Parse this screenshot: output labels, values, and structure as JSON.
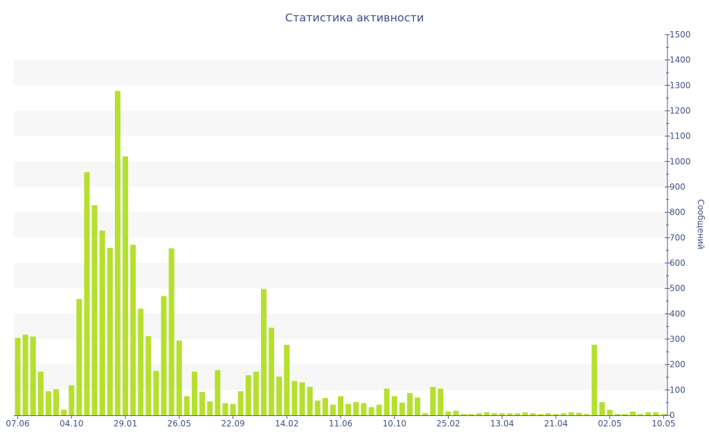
{
  "chart_data": {
    "type": "bar",
    "title": "Статистика активности",
    "ylabel": "Сообщений",
    "xlabel": "",
    "ylim": [
      0,
      1500
    ],
    "y_ticks": [
      0,
      100,
      200,
      300,
      400,
      500,
      600,
      700,
      800,
      900,
      1000,
      1100,
      1200,
      1300,
      1400,
      1500
    ],
    "y_axis_side": "right",
    "grid": "alternating horizontal bands",
    "bar_color": "#b5e02e",
    "band_color": "#f7f7f7",
    "text_color": "#3d4f86",
    "axis_color": "#4a5a8a",
    "x_tick_labels": [
      {
        "index": 0,
        "label": "07.06"
      },
      {
        "index": 7,
        "label": "04.10"
      },
      {
        "index": 14,
        "label": "29.01"
      },
      {
        "index": 21,
        "label": "26.05"
      },
      {
        "index": 28,
        "label": "22.09"
      },
      {
        "index": 35,
        "label": "14.02"
      },
      {
        "index": 42,
        "label": "11.06"
      },
      {
        "index": 49,
        "label": "10.10"
      },
      {
        "index": 56,
        "label": "25.02"
      },
      {
        "index": 63,
        "label": "13.04"
      },
      {
        "index": 70,
        "label": "21.04"
      },
      {
        "index": 77,
        "label": "02.05"
      },
      {
        "index": 84,
        "label": "10.05"
      }
    ],
    "values": [
      305,
      318,
      310,
      172,
      95,
      103,
      22,
      118,
      458,
      958,
      828,
      728,
      660,
      1278,
      1020,
      672,
      420,
      312,
      175,
      470,
      658,
      295,
      75,
      172,
      92,
      55,
      178,
      48,
      45,
      95,
      158,
      172,
      498,
      345,
      152,
      278,
      135,
      130,
      112,
      58,
      68,
      42,
      75,
      45,
      52,
      48,
      32,
      42,
      105,
      75,
      50,
      88,
      70,
      8,
      112,
      105,
      15,
      18,
      5,
      5,
      8,
      12,
      8,
      8,
      8,
      8,
      12,
      8,
      5,
      8,
      5,
      8,
      12,
      10,
      5,
      278,
      52,
      22,
      5,
      5,
      15,
      5,
      12,
      12,
      5
    ]
  }
}
